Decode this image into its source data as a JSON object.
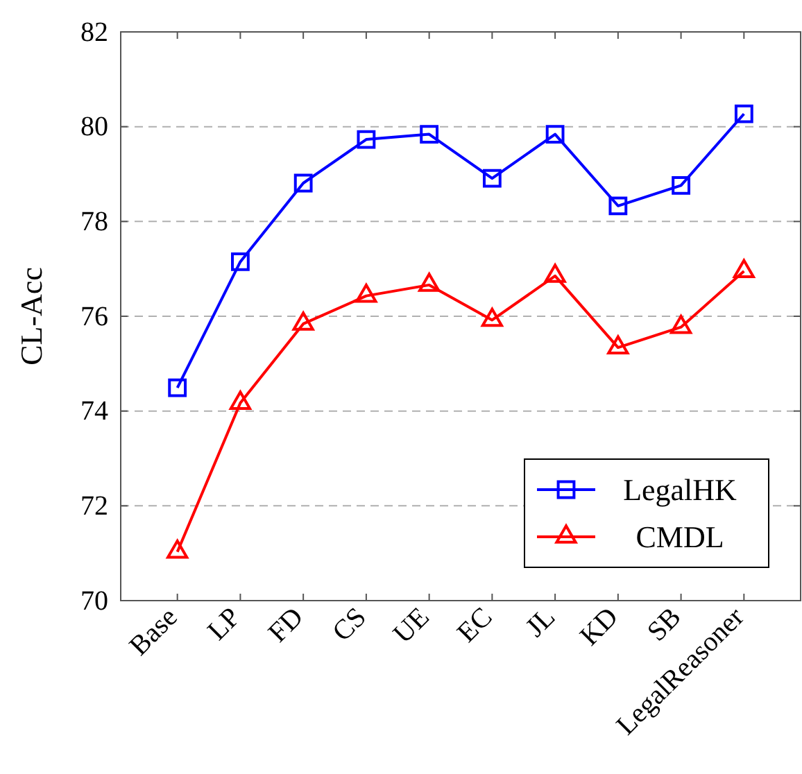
{
  "chart_data": {
    "type": "line",
    "ylabel": "CL-Acc",
    "categories": [
      "Base",
      "LP",
      "FD",
      "CS",
      "UE",
      "EC",
      "JL",
      "KD",
      "SB",
      "LegalReasoner"
    ],
    "series": [
      {
        "name": "LegalHK",
        "color": "#0000ff",
        "marker": "square",
        "values": [
          74.49,
          77.15,
          78.81,
          79.73,
          79.84,
          78.91,
          79.84,
          78.33,
          78.76,
          80.27
        ]
      },
      {
        "name": "CMDL",
        "color": "#ff0000",
        "marker": "triangle",
        "values": [
          71.03,
          74.17,
          75.84,
          76.43,
          76.66,
          75.92,
          76.85,
          75.34,
          75.77,
          76.95
        ]
      }
    ],
    "ylim": [
      70,
      82
    ],
    "yticks": [
      70,
      72,
      74,
      76,
      78,
      80,
      82
    ],
    "grid": "y",
    "legend": "bottom right",
    "line_style": "solid"
  }
}
